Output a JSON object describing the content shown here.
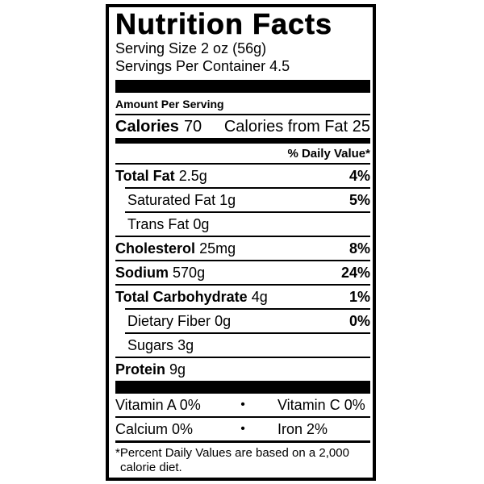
{
  "colors": {
    "ink": "#000000",
    "paper": "#ffffff"
  },
  "title": "Nutrition Facts",
  "serving": {
    "size": "Serving Size 2 oz (56g)",
    "per_container": "Servings Per Container 4.5"
  },
  "amount_per_serving": "Amount Per Serving",
  "calories": {
    "label": "Calories",
    "value": "70",
    "from_fat": "Calories from Fat 25"
  },
  "daily_value_header": "% Daily Value*",
  "nutrients": [
    {
      "name": "Total Fat",
      "amount": "2.5g",
      "dv": "4%"
    },
    {
      "name": "Saturated Fat",
      "amount": "1g",
      "dv": "5%"
    },
    {
      "name": "Trans Fat",
      "amount": "0g",
      "dv": ""
    },
    {
      "name": "Cholesterol",
      "amount": "25mg",
      "dv": "8%"
    },
    {
      "name": "Sodium",
      "amount": "570g",
      "dv": "24%"
    },
    {
      "name": "Total Carbohydrate",
      "amount": "4g",
      "dv": "1%"
    },
    {
      "name": "Dietary Fiber",
      "amount": "0g",
      "dv": "0%"
    },
    {
      "name": "Sugars",
      "amount": "3g",
      "dv": ""
    },
    {
      "name": "Protein",
      "amount": "9g",
      "dv": ""
    }
  ],
  "vitamins": [
    {
      "left": "Vitamin A 0%",
      "bullet": "•",
      "right": "Vitamin C 0%"
    },
    {
      "left": "Calcium 0%",
      "bullet": "•",
      "right": "Iron 2%"
    }
  ],
  "footnote": {
    "line1": "*Percent Daily Values are based on a 2,000",
    "line2": "calorie diet."
  }
}
